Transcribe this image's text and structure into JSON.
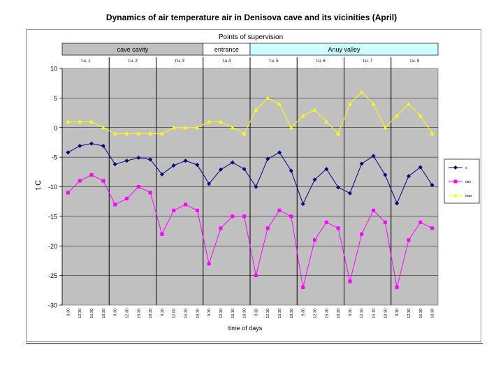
{
  "page": {
    "title": "Dynamics of air temperature air in Denisova cave and its vicinities (April)"
  },
  "chart_data": {
    "type": "line",
    "title": "Points of supervision",
    "xlabel": "time of days",
    "ylabel": "t C",
    "ylim": [
      -30,
      10
    ],
    "yticks": [
      10,
      5,
      0,
      -5,
      -10,
      -15,
      -20,
      -25,
      -30
    ],
    "grid": true,
    "plot_background": "#c0c0c0",
    "legend_position": "right",
    "zones": [
      {
        "label": "cave cavity",
        "from_point": 1,
        "to_point": 3,
        "color": "#c0c0c0"
      },
      {
        "label": "entrance",
        "from_point": 4,
        "to_point": 4,
        "color": "#ffffff"
      },
      {
        "label": "Anuy valley",
        "from_point": 5,
        "to_point": 8,
        "color": "#ccffff"
      }
    ],
    "groups": [
      "т.н. 1",
      "т.н. 2",
      "т.н. 3",
      "т.н.4",
      "т.н. 5",
      "т.н. 6",
      "т.н. 7",
      "т.н. 8"
    ],
    "categories": [
      "9.30",
      "12.30",
      "15.30",
      "18.30",
      "9.30",
      "12.30",
      "15.30",
      "18.30",
      "9.30",
      "12.00",
      "15.30",
      "18.30",
      "9.30",
      "12.30",
      "15.10",
      "18.30",
      "9.30",
      "12.30",
      "15.30",
      "18.30",
      "9.30",
      "12.30",
      "15.30",
      "18.30",
      "9.30",
      "12.30",
      "15.10",
      "18.30",
      "9.30",
      "12.30",
      "15.30",
      "18.30"
    ],
    "series": [
      {
        "name": "x",
        "color": "#000080",
        "marker": "diamond",
        "values": [
          -4.2,
          -3.1,
          -2.7,
          -3.1,
          -6.2,
          -5.6,
          -5.1,
          -5.4,
          -7.9,
          -6.4,
          -5.6,
          -6.3,
          -9.5,
          -7.1,
          -5.9,
          -7.0,
          -10.0,
          -5.3,
          -4.2,
          -7.3,
          -12.9,
          -8.8,
          -7.0,
          -10.1,
          -11.1,
          -6.1,
          -4.8,
          -8.0,
          -12.8,
          -8.2,
          -6.7,
          -9.7
        ]
      },
      {
        "name": "min",
        "color": "#ff00ff",
        "marker": "square",
        "values": [
          -11,
          -9,
          -8,
          -9,
          -13,
          -12,
          -10,
          -11,
          -18,
          -14,
          -13,
          -14,
          -23,
          -17,
          -15,
          -15,
          -25,
          -17,
          -14,
          -15,
          -27,
          -19,
          -16,
          -17,
          -26,
          -18,
          -14,
          -16,
          -27,
          -19,
          -16,
          -17
        ]
      },
      {
        "name": "max",
        "color": "#ffff00",
        "marker": "triangle",
        "values": [
          1,
          1,
          1,
          0,
          -1,
          -1,
          -1,
          -1,
          -1,
          0,
          0,
          0,
          1,
          1,
          0,
          -1,
          3,
          5,
          4,
          0,
          2,
          3,
          1,
          -1,
          4,
          6,
          4,
          0,
          2,
          4,
          2,
          -1
        ]
      }
    ]
  }
}
